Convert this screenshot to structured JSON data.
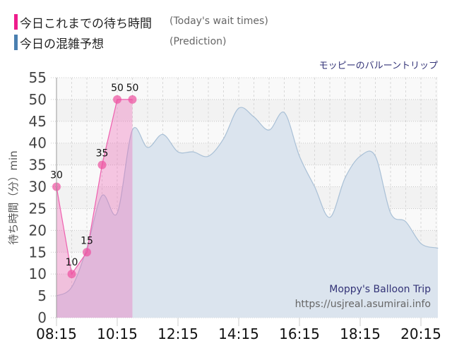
{
  "legend": {
    "items": [
      {
        "label_jp": "今日これまでの待ち時間",
        "label_en": "(Today's wait times)",
        "color": "#ee1c8c"
      },
      {
        "label_jp": "今日の混雑予想",
        "label_en": "(Prediction)",
        "color": "#4a7fb0"
      }
    ]
  },
  "attraction_title": "モッピーのバルーントリップ",
  "credit": {
    "name": "Moppy's Balloon Trip",
    "url": "https://usjreal.asumirai.info"
  },
  "chart_data": {
    "type": "area",
    "title": "モッピーのバルーントリップ",
    "xlabel": "",
    "ylabel": "待ち時間（分）min",
    "ylim": [
      0,
      55
    ],
    "yticks": [
      0,
      5,
      10,
      15,
      20,
      25,
      30,
      35,
      40,
      45,
      50,
      55
    ],
    "xticks": [
      "08:15",
      "10:15",
      "12:15",
      "14:15",
      "16:15",
      "18:15",
      "20:15"
    ],
    "grid": true,
    "legend_position": "top-left",
    "series": [
      {
        "name": "今日これまでの待ち時間 (Today's wait times)",
        "color": "#ee1c8c",
        "x": [
          "08:15",
          "08:45",
          "09:15",
          "09:45",
          "10:15",
          "10:45"
        ],
        "values": [
          30,
          10,
          15,
          35,
          50,
          50
        ],
        "labels": [
          "30",
          "10",
          "15",
          "35",
          "50",
          "50"
        ]
      },
      {
        "name": "今日の混雑予想 (Prediction)",
        "color": "#4a7fb0",
        "x": [
          "08:15",
          "08:45",
          "09:15",
          "09:45",
          "10:15",
          "10:45",
          "11:15",
          "11:45",
          "12:15",
          "12:45",
          "13:15",
          "13:45",
          "14:15",
          "14:45",
          "15:15",
          "15:45",
          "16:15",
          "16:45",
          "17:15",
          "17:45",
          "18:15",
          "18:45",
          "19:15",
          "19:45",
          "20:15",
          "20:45"
        ],
        "values": [
          5,
          7,
          16,
          28,
          24,
          43,
          39,
          42,
          38,
          38,
          37,
          41,
          48,
          46,
          43,
          47,
          37,
          30,
          23,
          32,
          37,
          37,
          24,
          22,
          17,
          16
        ]
      }
    ]
  },
  "axis": {
    "y_label": "待ち時間（分）min"
  }
}
